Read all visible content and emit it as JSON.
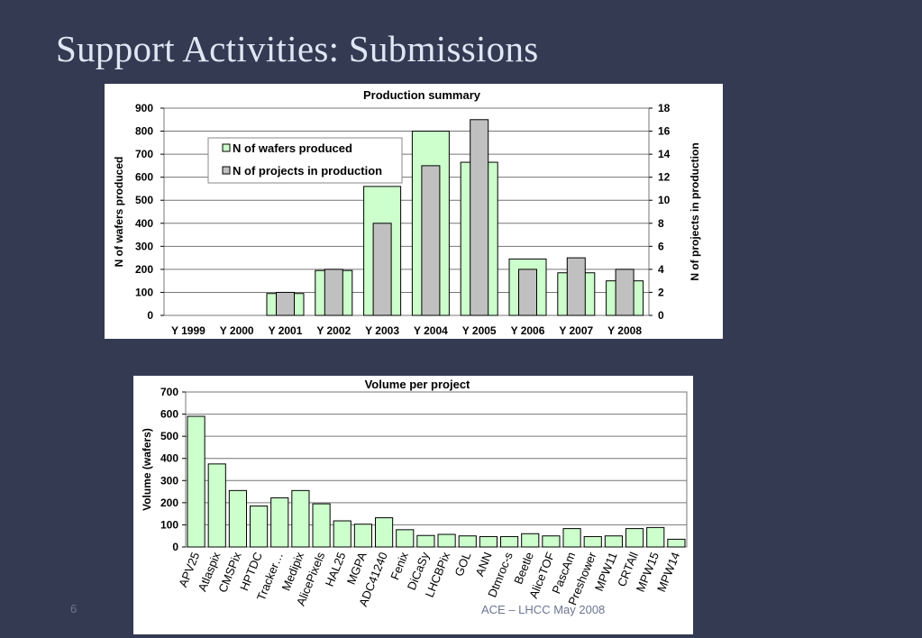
{
  "slide": {
    "title": "Support Activities: Submissions",
    "page_number": "6",
    "footer": "ACE – LHCC May 2008"
  },
  "colors": {
    "background": "#343a52",
    "wafers_fill": "#ccffcc",
    "projects_fill": "#c0c0c0",
    "grid": "#777777",
    "text": "#000000"
  },
  "chart_data": [
    {
      "type": "bar",
      "title": "Production summary",
      "ylabel": "N of wafers produced",
      "y2label": "N of projects in production",
      "categories": [
        "Y 1999",
        "Y 2000",
        "Y 2001",
        "Y 2002",
        "Y 2003",
        "Y 2004",
        "Y 2005",
        "Y 2006",
        "Y 2007",
        "Y 2008"
      ],
      "series": [
        {
          "name": "N of wafers produced",
          "axis": "left",
          "color": "#ccffcc",
          "values": [
            0,
            0,
            95,
            195,
            560,
            800,
            665,
            245,
            185,
            150
          ]
        },
        {
          "name": "N of projects in production",
          "axis": "right",
          "color": "#c0c0c0",
          "values": [
            0,
            0,
            2,
            4,
            8,
            13,
            17,
            4,
            5,
            4
          ]
        }
      ],
      "ylim": [
        0,
        900
      ],
      "y_ticks": [
        "0",
        "100",
        "200",
        "300",
        "400",
        "500",
        "600",
        "700",
        "800",
        "900"
      ],
      "y2lim": [
        0,
        18
      ],
      "y2_ticks": [
        "0",
        "2",
        "4",
        "6",
        "8",
        "10",
        "12",
        "14",
        "16",
        "18"
      ],
      "grid": true,
      "legend": "top-left"
    },
    {
      "type": "bar",
      "title": "Volume per project",
      "ylabel": "Volume (wafers)",
      "categories": [
        "APV25",
        "Atlaspix",
        "CMSPix",
        "HPTDC",
        "Tracker…",
        "Medipix",
        "AlicePixels",
        "HAL25",
        "MGPA",
        "ADC41240",
        "Fenix",
        "DiCaSy",
        "LHCBPix",
        "GOL",
        "ANN",
        "Dtmroc-s",
        "Beetle",
        "AliceTOF",
        "PascAm",
        "Preshower",
        "MPW11",
        "CRTAll",
        "MPW15",
        "MPW14"
      ],
      "values": [
        590,
        375,
        255,
        185,
        222,
        255,
        195,
        118,
        103,
        132,
        78,
        52,
        57,
        50,
        47,
        47,
        60,
        50,
        83,
        47,
        50,
        83,
        88,
        35
      ],
      "ylim": [
        0,
        700
      ],
      "y_ticks": [
        "0",
        "100",
        "200",
        "300",
        "400",
        "500",
        "600",
        "700"
      ],
      "grid": true
    }
  ]
}
